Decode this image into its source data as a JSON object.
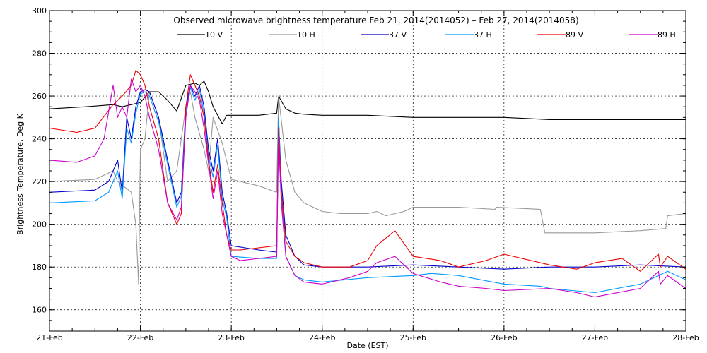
{
  "chart_data": {
    "type": "line",
    "title": "Observed microwave brightness temperature Feb 21, 2014(2014052) – Feb 27, 2014(2014058)",
    "xlabel": "Date (EST)",
    "ylabel": "Brightness Temperature, Deg K",
    "xlim": [
      0,
      7
    ],
    "ylim": [
      150,
      300
    ],
    "x_ticks": [
      0,
      1,
      2,
      3,
      4,
      5,
      6,
      7
    ],
    "x_tick_labels": [
      "21-Feb",
      "22-Feb",
      "23-Feb",
      "24-Feb",
      "25-Feb",
      "26-Feb",
      "27-Feb",
      "28-Feb"
    ],
    "y_ticks": [
      160,
      180,
      200,
      220,
      240,
      260,
      280,
      300
    ],
    "grid": true,
    "legend_position": "top",
    "series": [
      {
        "name": "10 V",
        "color": "#000000",
        "x": [
          0.0,
          0.4,
          0.7,
          0.8,
          0.9,
          1.0,
          1.1,
          1.2,
          1.25,
          1.3,
          1.4,
          1.5,
          1.6,
          1.65,
          1.7,
          1.75,
          1.8,
          1.9,
          1.95,
          2.0,
          2.3,
          2.5,
          2.52,
          2.6,
          2.7,
          2.8,
          3.0,
          3.5,
          4.0,
          4.5,
          5.0,
          5.5,
          6.0,
          6.5,
          7.0
        ],
        "y": [
          254,
          255,
          256,
          255,
          256,
          257,
          262,
          262,
          260,
          258,
          253,
          265,
          266,
          265,
          267,
          262,
          255,
          247,
          251,
          251,
          251,
          252,
          260,
          254,
          252,
          251.5,
          251,
          251,
          250,
          250,
          250,
          249,
          249,
          249,
          249
        ]
      },
      {
        "name": "10 H",
        "color": "#999999",
        "x": [
          0.0,
          0.5,
          0.7,
          0.75,
          0.9,
          0.95,
          0.98,
          1.0,
          1.05,
          1.1,
          1.2,
          1.3,
          1.4,
          1.5,
          1.55,
          1.6,
          1.7,
          1.75,
          1.8,
          1.9,
          2.0,
          2.3,
          2.5,
          2.52,
          2.6,
          2.7,
          2.8,
          2.9,
          3.0,
          3.2,
          3.5,
          3.6,
          3.7,
          3.8,
          3.9,
          4.0,
          4.5,
          4.9,
          4.92,
          5.4,
          5.45,
          5.6,
          5.8,
          6.0,
          6.5,
          6.78,
          6.8,
          7.0
        ],
        "y": [
          220,
          221,
          225,
          220,
          215,
          200,
          172,
          235,
          240,
          262,
          250,
          220,
          225,
          255,
          262,
          250,
          235,
          225,
          250,
          238,
          221,
          218,
          215,
          260,
          230,
          215,
          210,
          208,
          206,
          205,
          205,
          206,
          204,
          205,
          206,
          208,
          208,
          207,
          208,
          207,
          196,
          196,
          196,
          196,
          197,
          198,
          204,
          205
        ]
      },
      {
        "name": "37 V",
        "color": "#0000cc",
        "x": [
          0.0,
          0.5,
          0.65,
          0.75,
          0.8,
          0.85,
          0.9,
          0.95,
          1.0,
          1.05,
          1.1,
          1.2,
          1.3,
          1.4,
          1.45,
          1.5,
          1.55,
          1.6,
          1.65,
          1.7,
          1.75,
          1.8,
          1.85,
          1.9,
          1.95,
          2.0,
          2.3,
          2.5,
          2.52,
          2.55,
          2.6,
          2.7,
          2.8,
          3.0,
          3.5,
          4.0,
          4.5,
          5.0,
          5.5,
          6.0,
          6.5,
          7.0
        ],
        "y": [
          215,
          216,
          220,
          230,
          215,
          250,
          240,
          255,
          262,
          263,
          262,
          250,
          230,
          210,
          215,
          255,
          265,
          260,
          265,
          255,
          235,
          225,
          240,
          215,
          205,
          190,
          188,
          187,
          250,
          220,
          195,
          185,
          181,
          180,
          180,
          181,
          180,
          179,
          180,
          180,
          181,
          180
        ]
      },
      {
        "name": "37 H",
        "color": "#0099ff",
        "x": [
          0.0,
          0.5,
          0.65,
          0.75,
          0.8,
          0.85,
          0.9,
          0.95,
          1.0,
          1.05,
          1.1,
          1.2,
          1.3,
          1.4,
          1.45,
          1.5,
          1.55,
          1.6,
          1.65,
          1.7,
          1.75,
          1.8,
          1.85,
          1.9,
          1.95,
          2.0,
          2.3,
          2.5,
          2.52,
          2.55,
          2.6,
          2.7,
          2.8,
          3.0,
          3.5,
          4.0,
          4.2,
          4.5,
          5.0,
          5.4,
          5.5,
          6.0,
          6.5,
          6.8,
          7.0
        ],
        "y": [
          210,
          211,
          215,
          225,
          212,
          245,
          238,
          252,
          261,
          262,
          260,
          248,
          228,
          208,
          213,
          253,
          264,
          258,
          263,
          252,
          232,
          222,
          237,
          212,
          203,
          185,
          184,
          184,
          250,
          215,
          185,
          176,
          174,
          173,
          175,
          176,
          177,
          176,
          172,
          171,
          170,
          168,
          172,
          178,
          174
        ]
      },
      {
        "name": "89 V",
        "color": "#ee0000",
        "x": [
          0.0,
          0.3,
          0.5,
          0.7,
          0.8,
          0.9,
          0.95,
          1.0,
          1.05,
          1.1,
          1.2,
          1.3,
          1.4,
          1.45,
          1.5,
          1.55,
          1.6,
          1.65,
          1.7,
          1.75,
          1.8,
          1.85,
          1.9,
          1.95,
          2.0,
          2.1,
          2.3,
          2.5,
          2.52,
          2.55,
          2.6,
          2.7,
          2.8,
          3.0,
          3.3,
          3.5,
          3.6,
          3.8,
          4.0,
          4.3,
          4.5,
          4.8,
          5.0,
          5.5,
          5.8,
          6.0,
          6.3,
          6.5,
          6.7,
          6.72,
          6.8,
          7.0
        ],
        "y": [
          245,
          243,
          245,
          256,
          260,
          265,
          272,
          270,
          265,
          255,
          240,
          210,
          200,
          205,
          255,
          270,
          265,
          260,
          250,
          230,
          215,
          228,
          210,
          195,
          188,
          188,
          189,
          190,
          245,
          215,
          192,
          185,
          182,
          180,
          180,
          183,
          190,
          197,
          185,
          183,
          180,
          183,
          186,
          181,
          179,
          182,
          184,
          178,
          186,
          180,
          185,
          179
        ]
      },
      {
        "name": "89 H",
        "color": "#cc00cc",
        "x": [
          0.0,
          0.3,
          0.5,
          0.6,
          0.7,
          0.75,
          0.8,
          0.85,
          0.9,
          0.95,
          1.0,
          1.05,
          1.1,
          1.2,
          1.3,
          1.4,
          1.45,
          1.5,
          1.55,
          1.6,
          1.65,
          1.7,
          1.75,
          1.8,
          1.85,
          1.9,
          1.95,
          2.0,
          2.1,
          2.3,
          2.5,
          2.52,
          2.55,
          2.6,
          2.7,
          2.8,
          3.0,
          3.3,
          3.5,
          3.6,
          3.8,
          4.0,
          4.3,
          4.5,
          4.8,
          5.0,
          5.5,
          5.8,
          6.0,
          6.5,
          6.7,
          6.72,
          6.8,
          7.0
        ],
        "y": [
          230,
          229,
          232,
          240,
          265,
          250,
          255,
          250,
          268,
          262,
          265,
          260,
          250,
          235,
          210,
          202,
          208,
          250,
          265,
          262,
          258,
          245,
          228,
          212,
          225,
          205,
          195,
          185,
          183,
          184,
          185,
          240,
          210,
          185,
          176,
          173,
          172,
          175,
          178,
          182,
          185,
          177,
          173,
          171,
          170,
          169,
          170,
          168,
          166,
          170,
          178,
          172,
          176,
          170
        ]
      }
    ]
  }
}
